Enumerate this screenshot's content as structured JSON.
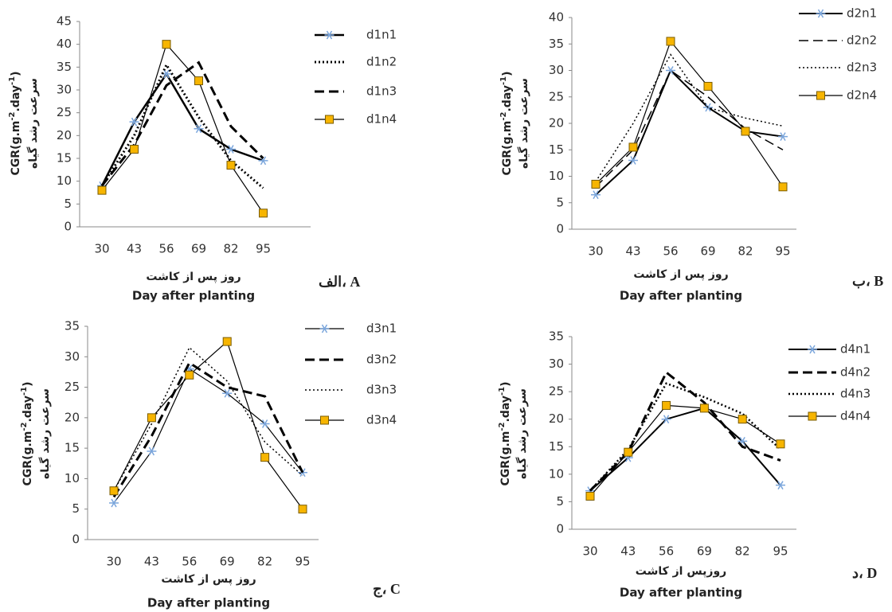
{
  "chart_data": [
    {
      "type": "line",
      "panel_label": "الف، A",
      "y_label": [
        {
          "text": "CGR(g.m"
        },
        {
          "text": "-2",
          "sup": true
        },
        {
          "text": ".day"
        },
        {
          "text": "-1",
          "sup": true
        },
        {
          "text": ")"
        }
      ],
      "y_label_fa": "سرعت رشد گیاه",
      "x_label_fa": "روز پس از کاشت",
      "x_label": "Day after planting",
      "categories": [
        "30",
        "43",
        "56",
        "69",
        "82",
        "95"
      ],
      "ylim": [
        0,
        45
      ],
      "yticks": [
        0,
        5,
        10,
        15,
        20,
        25,
        30,
        35,
        40,
        45
      ],
      "series": [
        {
          "name": "d1n1",
          "color": "#000000",
          "line_style": "solid",
          "line_width": 2.5,
          "marker": "asterisk",
          "marker_color": "#7ba6dc",
          "values": [
            9,
            23,
            33.5,
            21.5,
            17,
            14.5
          ]
        },
        {
          "name": "d1n2",
          "color": "#000000",
          "line_style": "dotted",
          "line_width": 3,
          "values": [
            9,
            20,
            35.5,
            24,
            14.5,
            8.5
          ]
        },
        {
          "name": "d1n3",
          "color": "#000000",
          "line_style": "dashed",
          "line_width": 3,
          "values": [
            9,
            18,
            31,
            36,
            22,
            15
          ]
        },
        {
          "name": "d1n4",
          "color": "#000000",
          "line_style": "solid",
          "line_width": 1.2,
          "marker": "square",
          "marker_color": "#f7b500",
          "values": [
            8,
            17,
            40,
            32,
            13.5,
            3
          ]
        }
      ]
    },
    {
      "type": "line",
      "panel_label": "ب، B",
      "y_label": [
        {
          "text": "CGR(g.m"
        },
        {
          "text": "-2",
          "sup": true
        },
        {
          "text": ".day"
        },
        {
          "text": "-1",
          "sup": true
        },
        {
          "text": ")"
        }
      ],
      "y_label_fa": "سرعت رشد گیاه",
      "x_label_fa": "روز پس از کاشت",
      "x_label": "Day after planting",
      "categories": [
        "30",
        "43",
        "56",
        "69",
        "82",
        "95"
      ],
      "ylim": [
        0,
        40
      ],
      "yticks": [
        0,
        5,
        10,
        15,
        20,
        25,
        30,
        35,
        40
      ],
      "series": [
        {
          "name": "d2n1",
          "color": "#000000",
          "line_style": "solid",
          "line_width": 2,
          "marker": "asterisk",
          "marker_color": "#7ba6dc",
          "values": [
            6.5,
            13,
            30,
            23,
            18.5,
            17.5
          ]
        },
        {
          "name": "d2n2",
          "color": "#000000",
          "line_style": "dashed",
          "line_width": 1.5,
          "values": [
            8,
            15,
            30,
            25,
            19,
            15
          ]
        },
        {
          "name": "d2n3",
          "color": "#000000",
          "line_style": "dotted",
          "line_width": 1.5,
          "values": [
            9,
            20,
            33,
            23,
            21,
            19.5
          ]
        },
        {
          "name": "d2n4",
          "color": "#000000",
          "line_style": "solid",
          "line_width": 1.2,
          "marker": "square",
          "marker_color": "#f7b500",
          "values": [
            8.5,
            15.5,
            35.5,
            27,
            18.5,
            8
          ]
        }
      ]
    },
    {
      "type": "line",
      "panel_label": "ج، C",
      "y_label": [
        {
          "text": "CGR(g.m"
        },
        {
          "text": "-2",
          "sup": true
        },
        {
          "text": ".day"
        },
        {
          "text": "-1",
          "sup": true
        },
        {
          "text": ")"
        }
      ],
      "y_label_fa": "سرعت رشد گیاه",
      "x_label_fa": "روز پس از کاشت",
      "x_label": "Day after planting",
      "categories": [
        "30",
        "43",
        "56",
        "69",
        "82",
        "95"
      ],
      "ylim": [
        0,
        35
      ],
      "yticks": [
        0,
        5,
        10,
        15,
        20,
        25,
        30,
        35
      ],
      "series": [
        {
          "name": "d3n1",
          "color": "#000000",
          "line_style": "solid",
          "line_width": 1.2,
          "marker": "asterisk",
          "marker_color": "#7ba6dc",
          "values": [
            6,
            14.5,
            28,
            24,
            19,
            11
          ]
        },
        {
          "name": "d3n2",
          "color": "#000000",
          "line_style": "dashed",
          "line_width": 3,
          "values": [
            7,
            17,
            29,
            25,
            23.5,
            11
          ]
        },
        {
          "name": "d3n3",
          "color": "#000000",
          "line_style": "dotted",
          "line_width": 1.5,
          "values": [
            8,
            19,
            31.5,
            26,
            16,
            10.5
          ]
        },
        {
          "name": "d3n4",
          "color": "#000000",
          "line_style": "solid",
          "line_width": 1.2,
          "marker": "square",
          "marker_color": "#f7b500",
          "values": [
            8,
            20,
            27,
            32.5,
            13.5,
            5
          ]
        }
      ]
    },
    {
      "type": "line",
      "panel_label": "د، D",
      "y_label": [
        {
          "text": "CGR(g.m"
        },
        {
          "text": "-2",
          "sup": true
        },
        {
          "text": ".day"
        },
        {
          "text": "-1",
          "sup": true
        },
        {
          "text": ")"
        }
      ],
      "y_label_fa": "سرعت رشد گیاه",
      "x_label_fa": "روزپس از کاشت",
      "x_label": "Day after planting",
      "categories": [
        "30",
        "43",
        "56",
        "69",
        "82",
        "95"
      ],
      "ylim": [
        0,
        35
      ],
      "yticks": [
        0,
        5,
        10,
        15,
        20,
        25,
        30,
        35
      ],
      "series": [
        {
          "name": "d4n1",
          "color": "#000000",
          "line_style": "solid",
          "line_width": 2,
          "marker": "asterisk",
          "marker_color": "#7ba6dc",
          "values": [
            7,
            13,
            20,
            22,
            16,
            8
          ]
        },
        {
          "name": "d4n2",
          "color": "#000000",
          "line_style": "dashed",
          "line_width": 3,
          "values": [
            7,
            14,
            28.5,
            23,
            15,
            12.5
          ]
        },
        {
          "name": "d4n3",
          "color": "#000000",
          "line_style": "dotted",
          "line_width": 2.5,
          "values": [
            7,
            14.5,
            26.5,
            24,
            21,
            14.5
          ]
        },
        {
          "name": "d4n4",
          "color": "#000000",
          "line_style": "solid",
          "line_width": 1.2,
          "marker": "square",
          "marker_color": "#f7b500",
          "values": [
            6,
            14,
            22.5,
            22,
            20,
            15.5
          ]
        }
      ]
    }
  ]
}
